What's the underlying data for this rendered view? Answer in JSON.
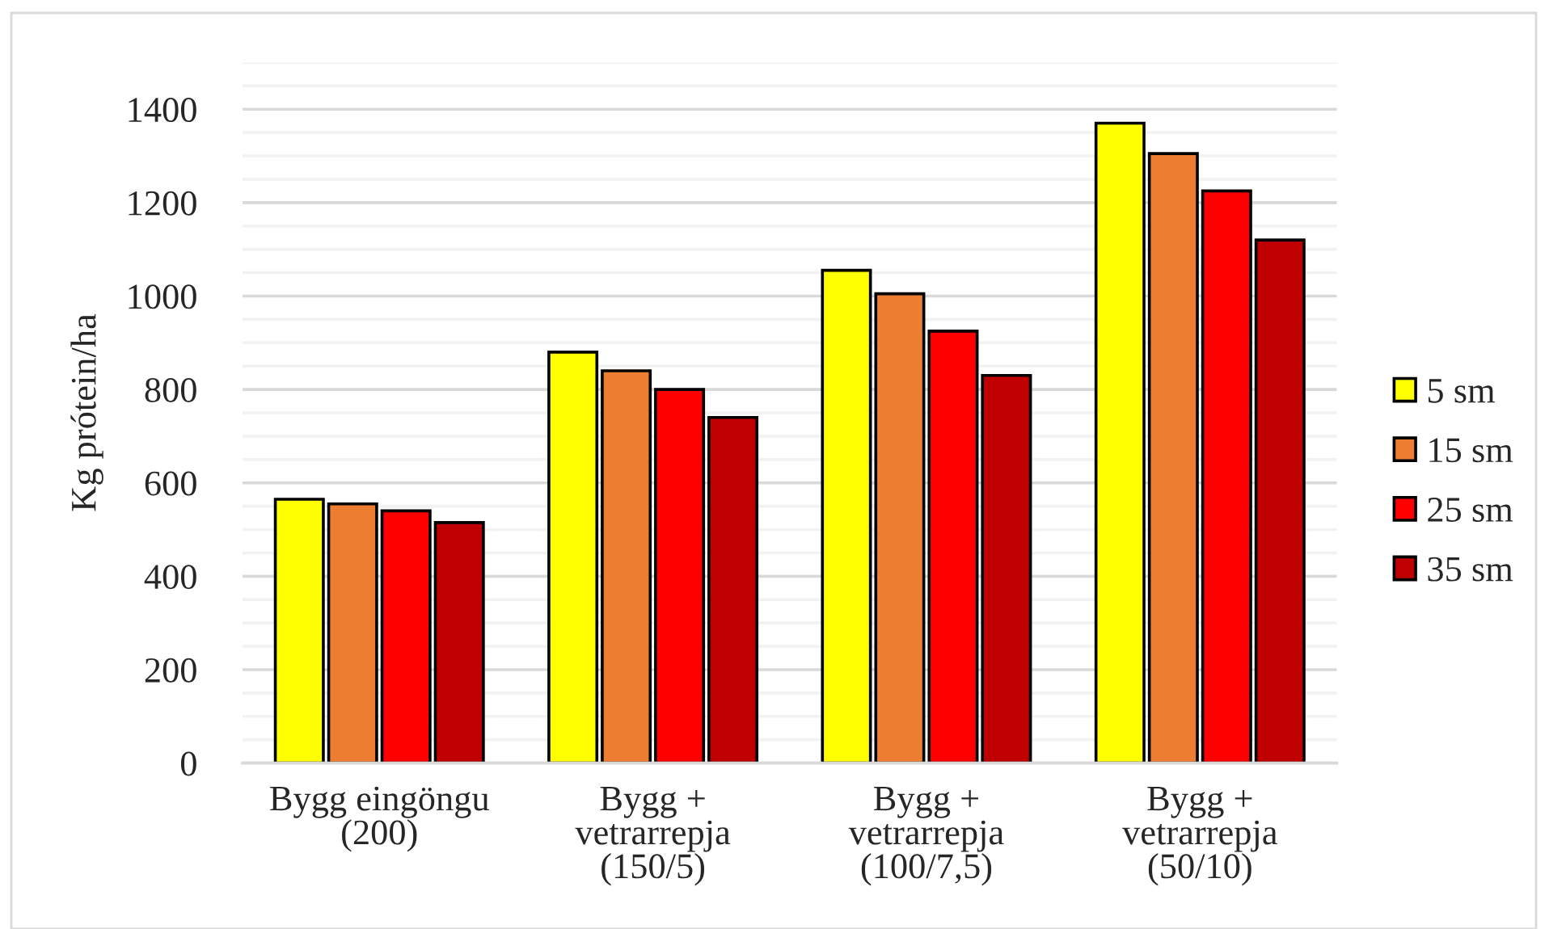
{
  "chart_data": {
    "type": "bar",
    "ylabel": "Kg prótein/ha",
    "categories": [
      "Bygg eingöngu\n(200)",
      "Bygg +\nvetrarrepja\n(150/5)",
      "Bygg +\nvetrarrepja\n(100/7,5)",
      "Bygg +\nvetrarrepja\n(50/10)"
    ],
    "series": [
      {
        "name": "5 sm",
        "color": "#ffff00",
        "values": [
          565,
          880,
          1055,
          1370
        ]
      },
      {
        "name": "15 sm",
        "color": "#ed7d31",
        "values": [
          555,
          840,
          1005,
          1305
        ]
      },
      {
        "name": "25 sm",
        "color": "#ff0000",
        "values": [
          540,
          800,
          925,
          1225
        ]
      },
      {
        "name": "35 sm",
        "color": "#c00000",
        "values": [
          515,
          740,
          830,
          1120
        ]
      }
    ],
    "ylim": [
      0,
      1500
    ],
    "yticks": [
      0,
      {
        "value": 50,
        "label": null
      },
      {
        "value": 100,
        "label": null
      },
      {
        "value": 150,
        "label": null
      },
      200,
      {
        "value": 250,
        "label": null
      },
      {
        "value": 300,
        "label": null
      },
      {
        "value": 350,
        "label": null
      },
      400,
      {
        "value": 450,
        "label": null
      },
      {
        "value": 500,
        "label": null
      },
      {
        "value": 550,
        "label": null
      },
      600,
      {
        "value": 650,
        "label": null
      },
      {
        "value": 700,
        "label": null
      },
      {
        "value": 750,
        "label": null
      },
      800,
      {
        "value": 850,
        "label": null
      },
      {
        "value": 900,
        "label": null
      },
      {
        "value": 950,
        "label": null
      },
      1000,
      {
        "value": 1050,
        "label": null
      },
      {
        "value": 1100,
        "label": null
      },
      {
        "value": 1150,
        "label": null
      },
      1200,
      {
        "value": 1250,
        "label": null
      },
      {
        "value": 1300,
        "label": null
      },
      {
        "value": 1350,
        "label": null
      },
      1400,
      {
        "value": 1450,
        "label": null
      },
      {
        "value": 1500,
        "label": null
      }
    ],
    "grid": "y",
    "legend": "right"
  }
}
